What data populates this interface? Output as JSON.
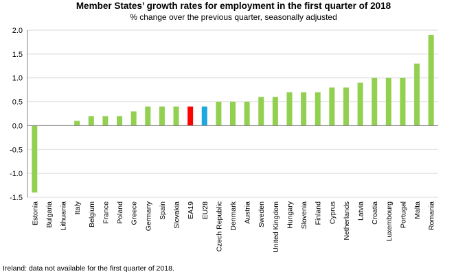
{
  "header": {
    "title": "Member States’ growth rates for employment in the first quarter of 2018",
    "subtitle": "% change over the previous quarter, seasonally adjusted"
  },
  "footnote": "Ireland: data not available for the first quarter of 2018.",
  "colors": {
    "default": "#92d050",
    "ea19": "#ff0000",
    "eu28": "#1ea7e1",
    "grid": "#d9d9d9",
    "axis": "#808080"
  },
  "chart_data": {
    "type": "bar",
    "title": "Member States’ growth rates for employment in the first quarter of 2018",
    "subtitle": "% change over the previous quarter, seasonally adjusted",
    "xlabel": "",
    "ylabel": "",
    "ylim": [
      -1.5,
      2.0
    ],
    "yticks": [
      "2.0",
      "1.5",
      "1.0",
      "0.5",
      "0.0",
      "-0.5",
      "-1.0",
      "-1.5"
    ],
    "grid": true,
    "categories": [
      "Estonia",
      "Bulgaria",
      "Lithuania",
      "Italy",
      "Belgium",
      "France",
      "Poland",
      "Greece",
      "Germany",
      "Spain",
      "Slovakia",
      "EA19",
      "EU28",
      "Czech Republic",
      "Denmark",
      "Austria",
      "Sweden",
      "United Kingdom",
      "Hungary",
      "Slovenia",
      "Finland",
      "Cyprus",
      "Netherlands",
      "Latvia",
      "Croatia",
      "Luxembourg",
      "Portugal",
      "Malta",
      "Romania"
    ],
    "values": [
      -1.4,
      0.0,
      0.0,
      0.1,
      0.2,
      0.2,
      0.2,
      0.3,
      0.4,
      0.4,
      0.4,
      0.4,
      0.4,
      0.5,
      0.5,
      0.5,
      0.6,
      0.6,
      0.7,
      0.7,
      0.7,
      0.8,
      0.8,
      0.9,
      1.0,
      1.0,
      1.0,
      1.3,
      1.9
    ],
    "highlight": {
      "EA19": "#ff0000",
      "EU28": "#1ea7e1"
    }
  }
}
